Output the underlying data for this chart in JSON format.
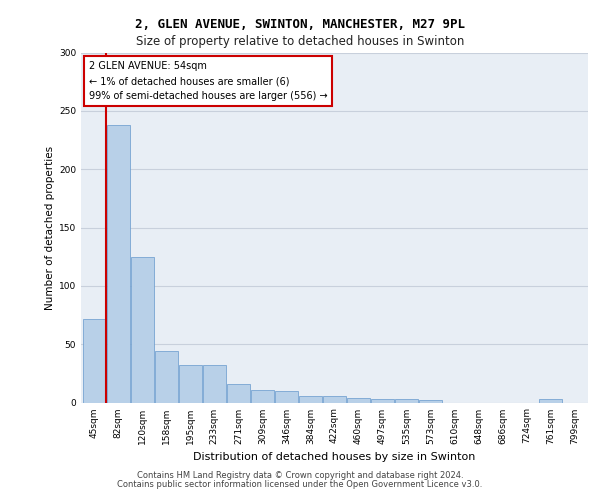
{
  "title1": "2, GLEN AVENUE, SWINTON, MANCHESTER, M27 9PL",
  "title2": "Size of property relative to detached houses in Swinton",
  "xlabel": "Distribution of detached houses by size in Swinton",
  "ylabel": "Number of detached properties",
  "footer1": "Contains HM Land Registry data © Crown copyright and database right 2024.",
  "footer2": "Contains public sector information licensed under the Open Government Licence v3.0.",
  "annotation_line1": "2 GLEN AVENUE: 54sqm",
  "annotation_line2": "← 1% of detached houses are smaller (6)",
  "annotation_line3": "99% of semi-detached houses are larger (556) →",
  "categories": [
    "45sqm",
    "82sqm",
    "120sqm",
    "158sqm",
    "195sqm",
    "233sqm",
    "271sqm",
    "309sqm",
    "346sqm",
    "384sqm",
    "422sqm",
    "460sqm",
    "497sqm",
    "535sqm",
    "573sqm",
    "610sqm",
    "648sqm",
    "686sqm",
    "724sqm",
    "761sqm",
    "799sqm"
  ],
  "values": [
    72,
    238,
    125,
    44,
    32,
    32,
    16,
    11,
    10,
    6,
    6,
    4,
    3,
    3,
    2,
    0,
    0,
    0,
    0,
    3,
    0
  ],
  "bar_color": "#b8d0e8",
  "bar_edge_color": "#6699cc",
  "highlight_line_color": "#cc0000",
  "annotation_box_bg": "#ffffff",
  "annotation_box_edge": "#cc0000",
  "ylim": [
    0,
    300
  ],
  "yticks": [
    0,
    50,
    100,
    150,
    200,
    250,
    300
  ],
  "grid_color": "#c8d0dc",
  "bg_color": "#e8eef5",
  "title1_fontsize": 9,
  "title2_fontsize": 8.5,
  "ylabel_fontsize": 7.5,
  "xlabel_fontsize": 8,
  "tick_fontsize": 6.5,
  "ann_fontsize": 7,
  "footer_fontsize": 6
}
